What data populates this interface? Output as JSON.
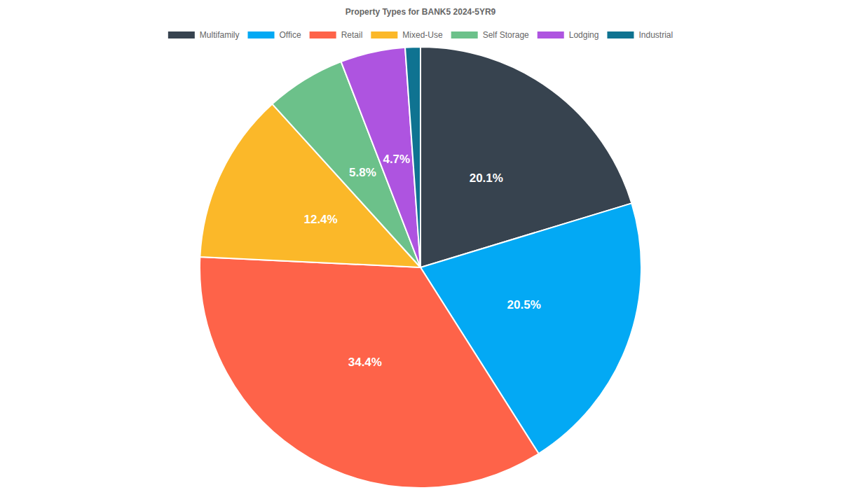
{
  "chart_data": {
    "type": "pie",
    "title": "Property Types for BANK5 2024-5YR9",
    "categories": [
      "Multifamily",
      "Office",
      "Retail",
      "Mixed-Use",
      "Self Storage",
      "Lodging",
      "Industrial"
    ],
    "values": [
      20.1,
      20.5,
      34.4,
      12.4,
      5.8,
      4.7,
      1.1
    ],
    "value_labels": [
      "20.1%",
      "20.5%",
      "34.4%",
      "12.4%",
      "5.8%",
      "4.7%",
      null
    ],
    "colors": [
      "#37434f",
      "#03a9f4",
      "#fe6349",
      "#fbb829",
      "#6cc18a",
      "#ae54e0",
      "#0f7391"
    ],
    "data_labels": true,
    "legend": "top"
  }
}
